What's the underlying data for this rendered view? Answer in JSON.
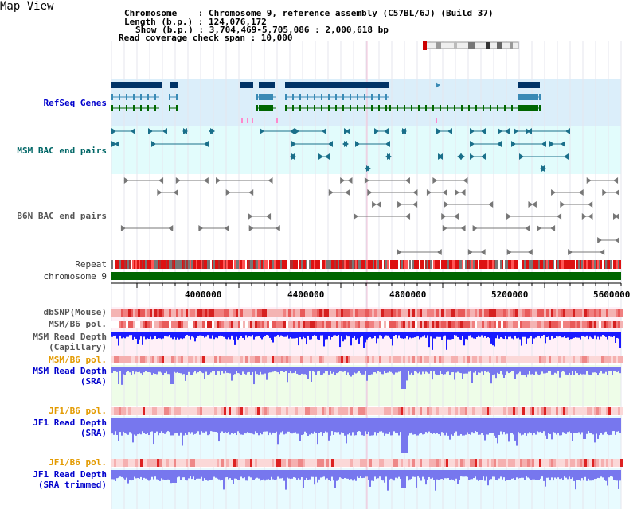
{
  "page": {
    "title": "Map View"
  },
  "header": {
    "lines": [
      "Chromosome    : Chromosome 9, reference assembly (C57BL/6J) (Build 37)",
      "Length (b.p.) : 124,076,172",
      "Show (b.p.) : 3,704,469-5,705,086 : 2,000,618 bp",
      "Read coverage check span : 10,000"
    ]
  },
  "tracks": {
    "refseq": "RefSeq Genes",
    "msm_bac": "MSM BAC end pairs",
    "b6n_bac": "B6N BAC end pairs",
    "repeat": "Repeat",
    "chromosome": "chromosome 9",
    "dbsnp": "dbSNP(Mouse)",
    "msm_b6_pol": "MSM/B6 pol.",
    "msm_depth_cap_1": "MSM Read Depth",
    "msm_depth_cap_2": "(Capillary)",
    "msm_b6_pol2": "MSM/B6 pol.",
    "msm_depth_sra_1": "MSM Read Depth",
    "msm_depth_sra_2": "(SRA)",
    "jf1_pol": "JF1/B6 pol.",
    "jf1_depth_sra_1": "JF1 Read Depth",
    "jf1_depth_sra_2": "(SRA)",
    "jf1_pol2": "JF1/B6 pol.",
    "jf1_depth_trim_1": "JF1 Read Depth",
    "jf1_depth_trim_2": "(SRA trimmed)"
  },
  "axis": {
    "ticks": [
      "4000000",
      "4400000",
      "4800000",
      "5200000",
      "5600000"
    ]
  },
  "colors": {
    "refseq_bg": "#dbeefa",
    "msm_bg": "#e2fcfc",
    "gene_dark": "#003366",
    "gene_light": "#3a8ab5",
    "gene_green": "#006600",
    "chrom_green": "#006600",
    "depth_blue": "#7777ee",
    "depth_strong": "#1a1aff"
  }
}
